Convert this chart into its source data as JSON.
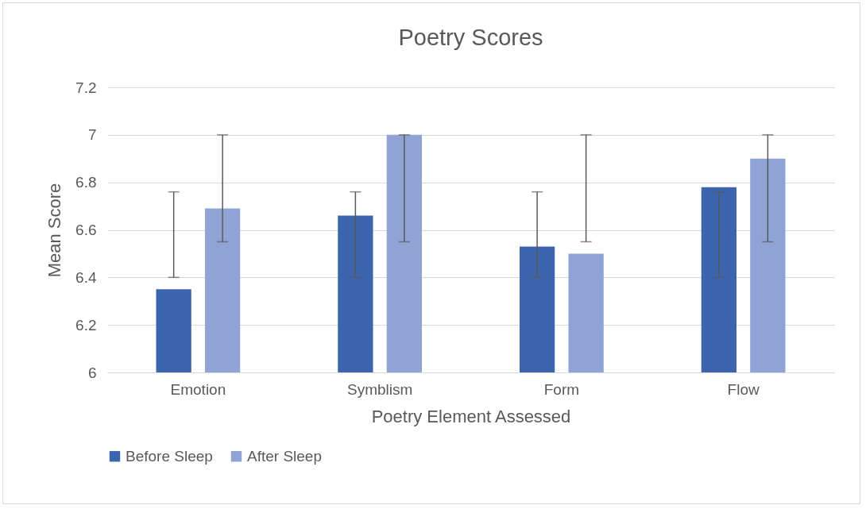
{
  "chart_data": {
    "type": "bar",
    "title": "Poetry Scores",
    "xlabel": "Poetry Element Assessed",
    "ylabel": "Mean Score",
    "categories": [
      "Emotion",
      "Symblism",
      "Form",
      "Flow"
    ],
    "series": [
      {
        "name": "Before Sleep",
        "color": "#3d65ae",
        "values": [
          6.35,
          6.66,
          6.53,
          6.78
        ],
        "errors": [
          [
            6.4,
            6.76
          ],
          [
            6.4,
            6.76
          ],
          [
            6.4,
            6.76
          ],
          [
            6.4,
            6.76
          ]
        ]
      },
      {
        "name": "After Sleep",
        "color": "#8fa4d5",
        "values": [
          6.69,
          7.0,
          6.5,
          6.9
        ],
        "errors": [
          [
            6.55,
            7.0
          ],
          [
            6.55,
            7.0
          ],
          [
            6.55,
            7.0
          ],
          [
            6.55,
            7.0
          ]
        ]
      }
    ],
    "ylim": [
      6,
      7.2
    ],
    "yticks": [
      6,
      6.2,
      6.4,
      6.6,
      6.8,
      7,
      7.2
    ],
    "grid": "y",
    "legend": "bottom"
  }
}
